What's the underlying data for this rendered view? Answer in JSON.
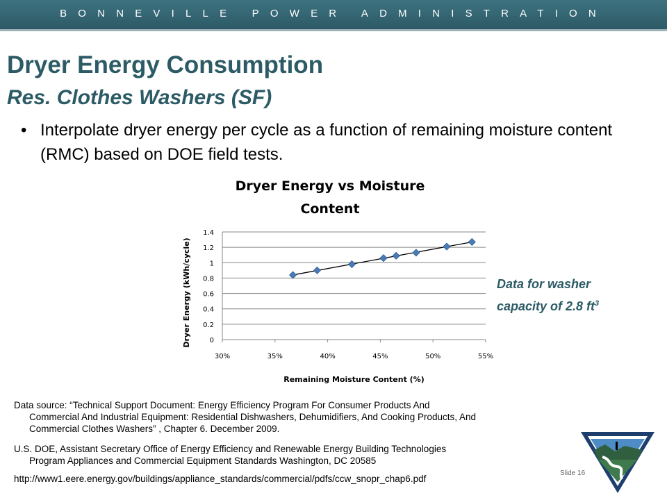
{
  "header": {
    "org_name": "BONNEVILLE POWER ADMINISTRATION"
  },
  "slide": {
    "title": "Dryer Energy Consumption",
    "subtitle": "Res. Clothes Washers (SF)",
    "bullet": "Interpolate dryer energy per cycle as a function of remaining moisture content (RMC) based on DOE field tests.",
    "note_line1": "Data for washer",
    "note_line2": "capacity of 2.8 ft",
    "note_sup": "3",
    "source1_line1": "Data source:  “Technical Support Document: Energy Efficiency Program For Consumer Products And",
    "source1_line2": "Commercial And Industrial Equipment: Residential Dishwashers, Dehumidifiers, And Cooking Products, And",
    "source1_line3": "Commercial Clothes Washers” , Chapter 6.  December 2009.",
    "source2_line1": "U.S. DOE, Assistant Secretary Office of Energy Efficiency and Renewable Energy Building Technologies",
    "source2_line2": "Program Appliances and Commercial Equipment Standards Washington, DC 20585",
    "url": "http://www1.eere.energy.gov/buildings/appliance_standards/commercial/pdfs/ccw_snopr_chap6.pdf",
    "slide_number": "Slide 16"
  },
  "chart_data": {
    "type": "scatter",
    "title_line1": "Dryer Energy vs Moisture",
    "title_line2": "Content",
    "xlabel": "Remaining Moisture Content (%)",
    "ylabel": "Dryer Energy  (kWh/cycle)",
    "xlim": [
      0.3,
      0.55
    ],
    "ylim": [
      0,
      1.4
    ],
    "x_ticks": [
      "30%",
      "35%",
      "40%",
      "45%",
      "50%",
      "55%"
    ],
    "y_ticks": [
      "0",
      "0.2",
      "0.4",
      "0.6",
      "0.8",
      "1",
      "1.2",
      "1.4"
    ],
    "grid": "horizontal",
    "trendline": true,
    "points": [
      {
        "x": 0.367,
        "y": 0.84
      },
      {
        "x": 0.39,
        "y": 0.9
      },
      {
        "x": 0.423,
        "y": 0.98
      },
      {
        "x": 0.453,
        "y": 1.06
      },
      {
        "x": 0.465,
        "y": 1.09
      },
      {
        "x": 0.484,
        "y": 1.13
      },
      {
        "x": 0.513,
        "y": 1.21
      },
      {
        "x": 0.537,
        "y": 1.27
      }
    ],
    "marker_color": "#4a7bb7"
  }
}
